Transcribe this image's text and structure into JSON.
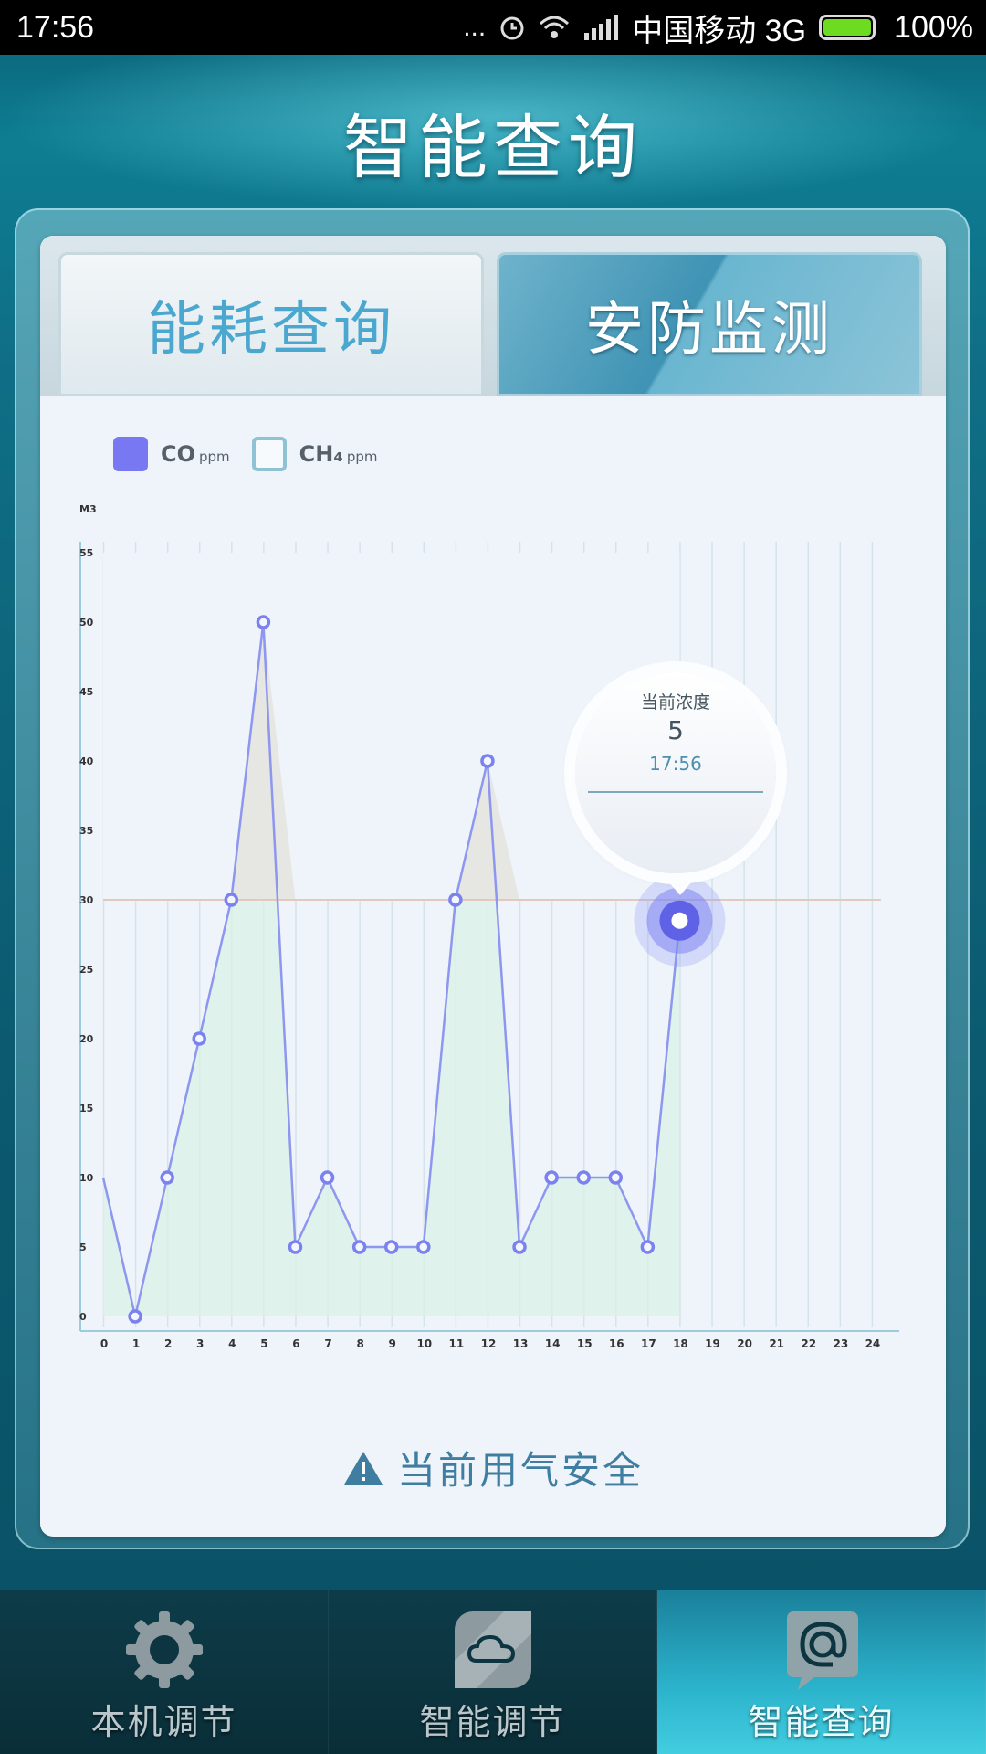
{
  "status_bar": {
    "time": "17:56",
    "dots": "...",
    "carrier": "中国移动 3G",
    "battery": "100%"
  },
  "header": {
    "title": "智能查询"
  },
  "tabs": [
    {
      "label": "能耗查询",
      "active": false
    },
    {
      "label": "安防监测",
      "active": true
    }
  ],
  "legend": {
    "co": {
      "label": "CO",
      "unit": "ppm",
      "color": "#7879f2"
    },
    "ch4": {
      "label": "CH₄",
      "unit": "ppm",
      "color": "#8fc3d4"
    }
  },
  "chart_data": {
    "type": "line",
    "ylabel": "M3",
    "ylim": [
      0,
      55
    ],
    "yticks": [
      0,
      5,
      10,
      15,
      20,
      25,
      30,
      35,
      40,
      45,
      50,
      55
    ],
    "x": [
      0,
      1,
      2,
      3,
      4,
      5,
      6,
      7,
      8,
      9,
      10,
      11,
      12,
      13,
      14,
      15,
      16,
      17,
      18,
      19,
      20,
      21,
      22,
      23,
      24
    ],
    "threshold": 30,
    "grid": true,
    "series": [
      {
        "name": "CO",
        "x": [
          0,
          1,
          2,
          3,
          4,
          5,
          6,
          7,
          8,
          9,
          10,
          11,
          12,
          13,
          14,
          15,
          16,
          17,
          18
        ],
        "values": [
          10,
          0,
          10,
          20,
          30,
          50,
          5,
          10,
          5,
          5,
          5,
          30,
          40,
          5,
          10,
          10,
          10,
          5,
          28.5
        ]
      }
    ],
    "current": {
      "label": "当前浓度",
      "value": "5",
      "time": "17:56"
    }
  },
  "safety": {
    "text": "当前用气安全"
  },
  "bottom_nav": [
    {
      "label": "本机调节",
      "icon": "gear-icon",
      "active": false
    },
    {
      "label": "智能调节",
      "icon": "cloud-icon",
      "active": false
    },
    {
      "label": "智能查询",
      "icon": "at-sign-icon",
      "active": true
    }
  ]
}
